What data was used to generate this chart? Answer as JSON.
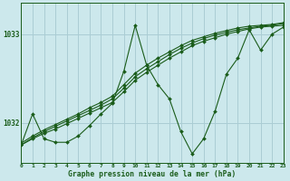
{
  "title": "Graphe pression niveau de la mer (hPa)",
  "bg_color": "#cce8ec",
  "line_color": "#1a5c1a",
  "grid_color": "#aacdd4",
  "xmin": 0,
  "xmax": 23,
  "ymin": 1031.55,
  "ymax": 1033.35,
  "yticks": [
    1032,
    1033
  ],
  "xticks": [
    0,
    1,
    2,
    3,
    4,
    5,
    6,
    7,
    8,
    9,
    10,
    11,
    12,
    13,
    14,
    15,
    16,
    17,
    18,
    19,
    20,
    21,
    22,
    23
  ],
  "series": [
    {
      "x": [
        0,
        1,
        2,
        3,
        4,
        5,
        6,
        7,
        8,
        9,
        10,
        11,
        12,
        13,
        14,
        15,
        16,
        17,
        18,
        19,
        20,
        21,
        22,
        23
      ],
      "y": [
        1031.75,
        1031.82,
        1031.88,
        1031.93,
        1031.99,
        1032.05,
        1032.11,
        1032.17,
        1032.23,
        1032.35,
        1032.48,
        1032.57,
        1032.65,
        1032.73,
        1032.8,
        1032.87,
        1032.92,
        1032.96,
        1033.0,
        1033.03,
        1033.06,
        1033.08,
        1033.09,
        1033.1
      ]
    },
    {
      "x": [
        0,
        1,
        2,
        3,
        4,
        5,
        6,
        7,
        8,
        9,
        10,
        11,
        12,
        13,
        14,
        15,
        16,
        17,
        18,
        19,
        20,
        21,
        22,
        23
      ],
      "y": [
        1031.75,
        1031.83,
        1031.9,
        1031.96,
        1032.02,
        1032.08,
        1032.14,
        1032.2,
        1032.27,
        1032.39,
        1032.52,
        1032.61,
        1032.69,
        1032.77,
        1032.84,
        1032.9,
        1032.95,
        1032.99,
        1033.02,
        1033.05,
        1033.07,
        1033.09,
        1033.1,
        1033.12
      ]
    },
    {
      "x": [
        0,
        1,
        2,
        3,
        4,
        5,
        6,
        7,
        8,
        9,
        10,
        11,
        12,
        13,
        14,
        15,
        16,
        17,
        18,
        19,
        20,
        21,
        22,
        23
      ],
      "y": [
        1031.77,
        1031.85,
        1031.92,
        1031.98,
        1032.04,
        1032.1,
        1032.17,
        1032.23,
        1032.3,
        1032.43,
        1032.56,
        1032.65,
        1032.73,
        1032.8,
        1032.87,
        1032.93,
        1032.97,
        1033.01,
        1033.04,
        1033.07,
        1033.09,
        1033.1,
        1033.11,
        1033.13
      ]
    },
    {
      "x": [
        0,
        1,
        2,
        3,
        4,
        5,
        6,
        7,
        8,
        9,
        10,
        11,
        12,
        13,
        14,
        15,
        16,
        17,
        18,
        19,
        20,
        21,
        22,
        23
      ],
      "y": [
        1031.75,
        1032.1,
        1031.82,
        1031.78,
        1031.78,
        1031.85,
        1031.97,
        1032.1,
        1032.22,
        1032.58,
        1033.1,
        1032.65,
        1032.43,
        1032.27,
        1031.9,
        1031.65,
        1031.82,
        1032.13,
        1032.55,
        1032.73,
        1033.05,
        1032.82,
        1033.0,
        1033.08
      ]
    }
  ]
}
